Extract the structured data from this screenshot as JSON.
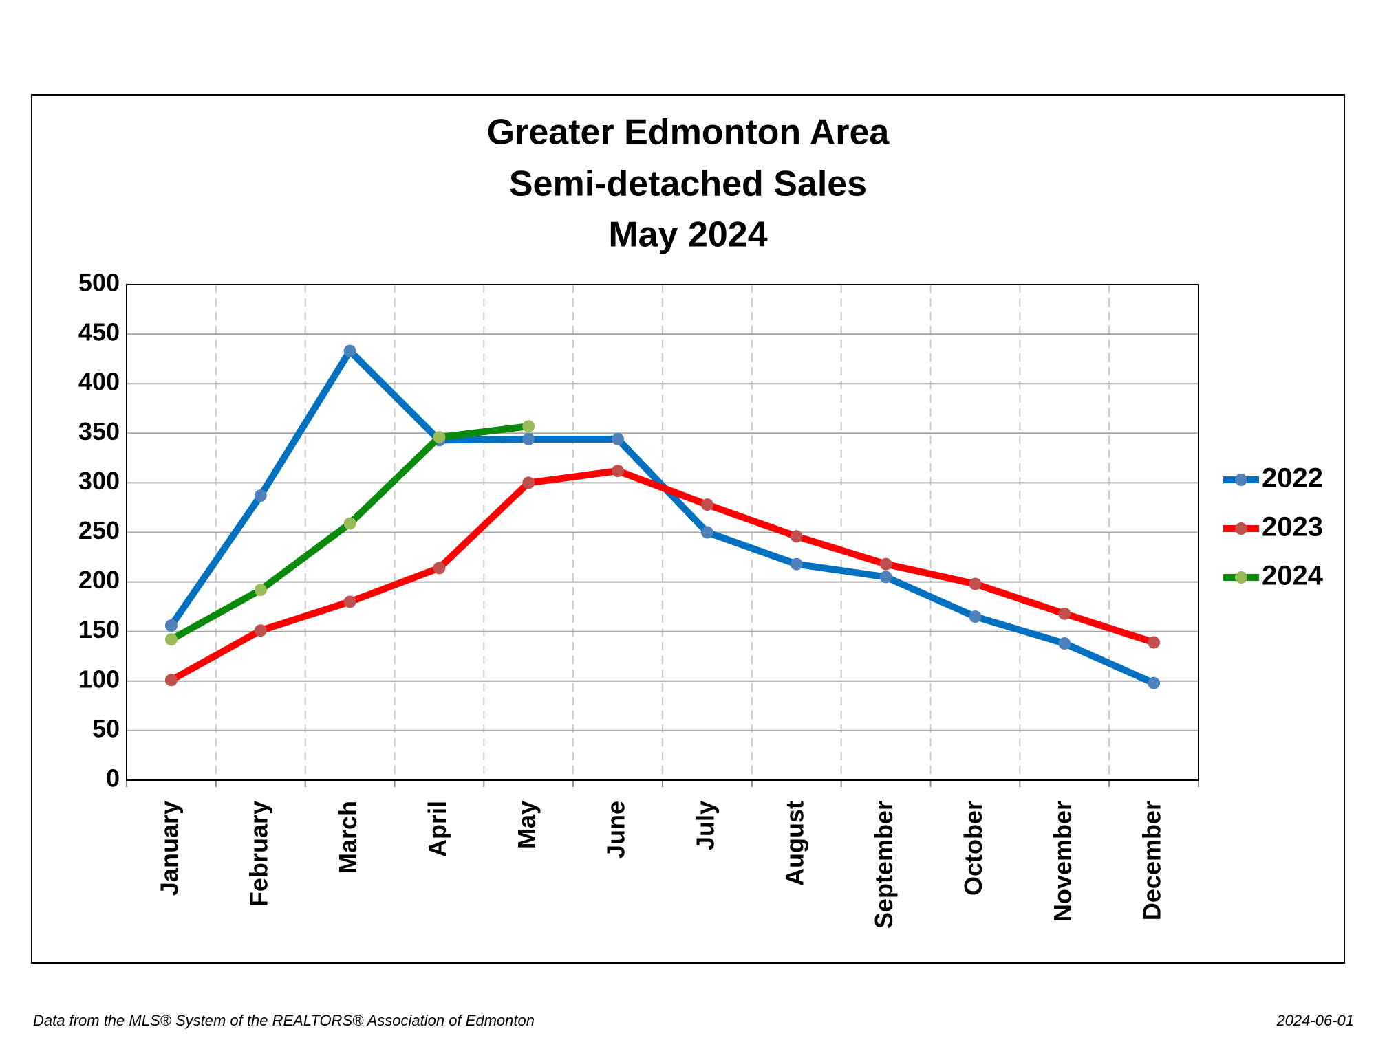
{
  "chart_data": {
    "type": "line",
    "title": [
      "Greater Edmonton Area",
      "Semi-detached Sales",
      "May 2024"
    ],
    "categories": [
      "January",
      "February",
      "March",
      "April",
      "May",
      "June",
      "July",
      "August",
      "September",
      "October",
      "November",
      "December"
    ],
    "series": [
      {
        "name": "2022",
        "color": "#0070c0",
        "marker_color": "#4f81bd",
        "values": [
          156,
          287,
          433,
          343,
          344,
          344,
          250,
          218,
          205,
          165,
          138,
          98
        ]
      },
      {
        "name": "2023",
        "color": "#ff0000",
        "marker_color": "#c0504d",
        "values": [
          101,
          151,
          180,
          214,
          300,
          312,
          278,
          246,
          218,
          198,
          168,
          139
        ]
      },
      {
        "name": "2024",
        "color": "#0a8a0a",
        "marker_color": "#9bbb59",
        "values": [
          142,
          192,
          259,
          346,
          357,
          null,
          null,
          null,
          null,
          null,
          null,
          null
        ]
      }
    ],
    "ylim": [
      0,
      500
    ],
    "yticks": [
      0,
      50,
      100,
      150,
      200,
      250,
      300,
      350,
      400,
      450,
      500
    ],
    "grid": true,
    "legend": "right",
    "footnote": "Data from the MLS® System of the REALTORS® Association of Edmonton",
    "date": "2024-06-01"
  }
}
